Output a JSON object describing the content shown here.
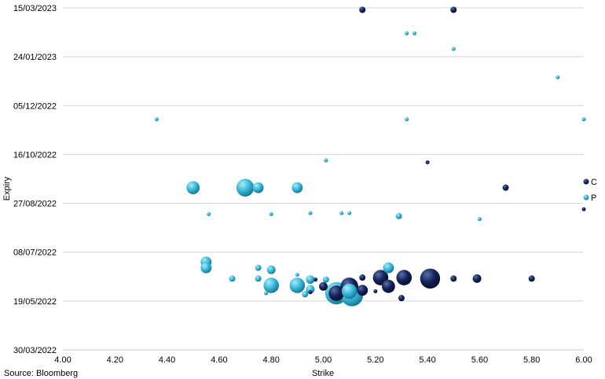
{
  "chart_data": {
    "type": "scatter",
    "bubble": true,
    "title": "",
    "xlabel": "Strike",
    "ylabel": "Expiry",
    "xlim": [
      4.0,
      6.0
    ],
    "x_ticks": [
      "4.00",
      "4.20",
      "4.40",
      "4.60",
      "4.80",
      "5.00",
      "5.20",
      "5.40",
      "5.60",
      "5.80",
      "6.00"
    ],
    "y_ticks": [
      "15/03/2023",
      "24/01/2023",
      "05/12/2022",
      "16/10/2022",
      "27/08/2022",
      "08/07/2022",
      "19/05/2022",
      "30/03/2022"
    ],
    "ylim_days": [
      0,
      350
    ],
    "legend_position": "right",
    "grid": "horizontal",
    "source": "Source: Bloomberg",
    "series": [
      {
        "name": "C",
        "color": "#14245a",
        "points": [
          {
            "strike": 5.15,
            "day": 348,
            "size": 2
          },
          {
            "strike": 5.5,
            "day": 348,
            "size": 2
          },
          {
            "strike": 5.4,
            "day": 192,
            "size": 1
          },
          {
            "strike": 5.7,
            "day": 166,
            "size": 2
          },
          {
            "strike": 6.0,
            "day": 144,
            "size": 1
          },
          {
            "strike": 5.15,
            "day": 74,
            "size": 2
          },
          {
            "strike": 5.22,
            "day": 74,
            "size": 6
          },
          {
            "strike": 5.31,
            "day": 74,
            "size": 6
          },
          {
            "strike": 5.41,
            "day": 73,
            "size": 8
          },
          {
            "strike": 5.5,
            "day": 73,
            "size": 2
          },
          {
            "strike": 5.59,
            "day": 73,
            "size": 3
          },
          {
            "strike": 5.8,
            "day": 73,
            "size": 2
          },
          {
            "strike": 5.0,
            "day": 65,
            "size": 3
          },
          {
            "strike": 5.1,
            "day": 65,
            "size": 7
          },
          {
            "strike": 5.25,
            "day": 65,
            "size": 5
          },
          {
            "strike": 5.15,
            "day": 61,
            "size": 4
          },
          {
            "strike": 5.2,
            "day": 60,
            "size": 1
          },
          {
            "strike": 5.3,
            "day": 53,
            "size": 2
          },
          {
            "strike": 5.05,
            "day": 58,
            "size": 6
          },
          {
            "strike": 4.95,
            "day": 59,
            "size": 1
          },
          {
            "strike": 4.97,
            "day": 72,
            "size": 1
          }
        ]
      },
      {
        "name": "P",
        "color": "#39b8d8",
        "points": [
          {
            "strike": 4.5,
            "day": 166,
            "size": 5
          },
          {
            "strike": 4.7,
            "day": 166,
            "size": 7
          },
          {
            "strike": 4.75,
            "day": 166,
            "size": 4
          },
          {
            "strike": 4.9,
            "day": 166,
            "size": 4
          },
          {
            "strike": 4.56,
            "day": 139,
            "size": 1
          },
          {
            "strike": 4.8,
            "day": 139,
            "size": 1
          },
          {
            "strike": 4.95,
            "day": 140,
            "size": 1
          },
          {
            "strike": 5.07,
            "day": 140,
            "size": 1
          },
          {
            "strike": 5.1,
            "day": 140,
            "size": 1
          },
          {
            "strike": 5.29,
            "day": 137,
            "size": 2
          },
          {
            "strike": 5.6,
            "day": 134,
            "size": 1
          },
          {
            "strike": 4.36,
            "day": 236,
            "size": 1
          },
          {
            "strike": 4.55,
            "day": 90,
            "size": 4
          },
          {
            "strike": 4.55,
            "day": 84,
            "size": 4
          },
          {
            "strike": 4.75,
            "day": 84,
            "size": 2
          },
          {
            "strike": 4.8,
            "day": 82,
            "size": 3
          },
          {
            "strike": 5.25,
            "day": 84,
            "size": 4
          },
          {
            "strike": 4.65,
            "day": 73,
            "size": 2
          },
          {
            "strike": 4.75,
            "day": 73,
            "size": 2
          },
          {
            "strike": 4.8,
            "day": 66,
            "size": 6
          },
          {
            "strike": 4.9,
            "day": 66,
            "size": 6
          },
          {
            "strike": 4.95,
            "day": 72,
            "size": 3
          },
          {
            "strike": 5.01,
            "day": 72,
            "size": 2
          },
          {
            "strike": 5.05,
            "day": 58,
            "size": 9
          },
          {
            "strike": 5.11,
            "day": 56,
            "size": 9
          },
          {
            "strike": 5.1,
            "day": 60,
            "size": 6
          },
          {
            "strike": 4.95,
            "day": 62,
            "size": 3
          },
          {
            "strike": 4.93,
            "day": 57,
            "size": 2
          },
          {
            "strike": 4.78,
            "day": 58,
            "size": 1
          },
          {
            "strike": 4.9,
            "day": 77,
            "size": 1
          },
          {
            "strike": 5.32,
            "day": 324,
            "size": 1
          },
          {
            "strike": 5.35,
            "day": 324,
            "size": 1
          },
          {
            "strike": 5.5,
            "day": 308,
            "size": 1
          },
          {
            "strike": 5.9,
            "day": 279,
            "size": 1
          },
          {
            "strike": 6.0,
            "day": 236,
            "size": 1
          },
          {
            "strike": 5.01,
            "day": 194,
            "size": 1
          },
          {
            "strike": 5.32,
            "day": 236,
            "size": 1
          }
        ]
      }
    ]
  }
}
